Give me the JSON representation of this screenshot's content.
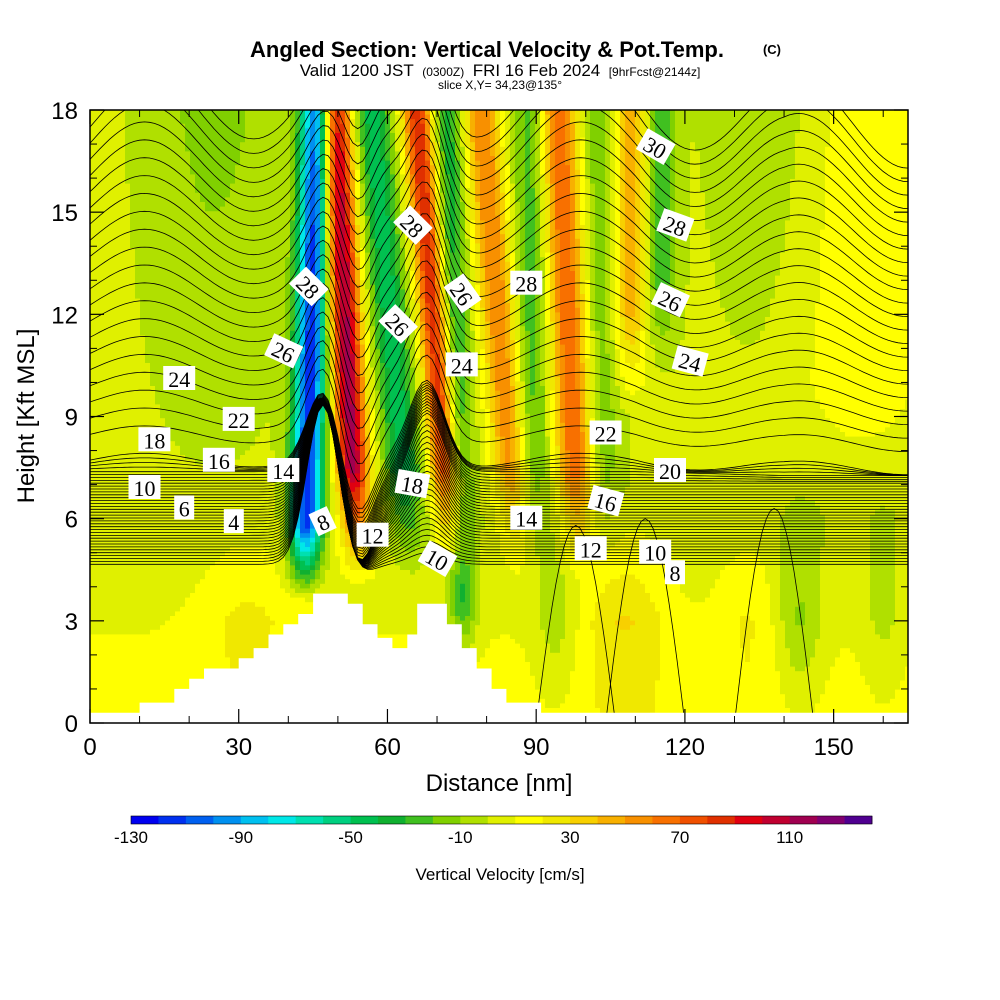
{
  "header": {
    "title": "Angled Section: Vertical Velocity & Pot.Temp.",
    "copyright": "(C)",
    "subtitle_main": "Valid 1200 JST",
    "subtitle_z": "(0300Z)",
    "subtitle_date": "FRI 16 Feb 2024",
    "subtitle_fcst": "[9hrFcst@2144z]",
    "slice": "slice X,Y= 34,23@135°"
  },
  "chart_data": {
    "type": "heatmap",
    "xlabel": "Distance [nm]",
    "ylabel": "Height [Kft MSL]",
    "xlim": [
      0,
      165
    ],
    "ylim": [
      0,
      18
    ],
    "x_ticks": [
      0,
      30,
      60,
      90,
      120,
      150
    ],
    "y_ticks": [
      0,
      3,
      6,
      9,
      12,
      15,
      18
    ],
    "colorbar": {
      "label": "Vertical Velocity [cm/s]",
      "tick_labels": [
        -130,
        -90,
        -50,
        -10,
        30,
        70,
        110
      ],
      "colors": [
        "#0000f0",
        "#0030f0",
        "#0060f0",
        "#0090f0",
        "#00c0f0",
        "#00e8e8",
        "#00e0b0",
        "#00d080",
        "#00c050",
        "#10b030",
        "#40c020",
        "#80d000",
        "#b0e000",
        "#e0f000",
        "#ffff00",
        "#f0e800",
        "#f8d000",
        "#f8b000",
        "#f89000",
        "#f87000",
        "#f05000",
        "#e03000",
        "#e00010",
        "#c00030",
        "#a00050",
        "#800070",
        "#500090"
      ]
    },
    "theta_contours": {
      "label_values": [
        4,
        6,
        8,
        8,
        10,
        10,
        10,
        12,
        12,
        14,
        14,
        16,
        16,
        18,
        18,
        20,
        22,
        22,
        24,
        24,
        24,
        26,
        26,
        26,
        26,
        28,
        28,
        28,
        28,
        30
      ]
    },
    "terrain": [
      [
        0,
        0.3
      ],
      [
        10,
        0.3
      ],
      [
        10,
        0.6
      ],
      [
        17,
        0.6
      ],
      [
        17,
        1.0
      ],
      [
        20,
        1.0
      ],
      [
        20,
        1.3
      ],
      [
        23,
        1.3
      ],
      [
        23,
        1.6
      ],
      [
        30,
        1.6
      ],
      [
        30,
        1.9
      ],
      [
        33,
        1.9
      ],
      [
        33,
        2.2
      ],
      [
        36,
        2.2
      ],
      [
        36,
        2.6
      ],
      [
        39,
        2.6
      ],
      [
        39,
        2.9
      ],
      [
        42,
        2.9
      ],
      [
        42,
        3.2
      ],
      [
        45,
        3.2
      ],
      [
        45,
        3.8
      ],
      [
        52,
        3.8
      ],
      [
        52,
        3.5
      ],
      [
        55,
        3.5
      ],
      [
        55,
        2.9
      ],
      [
        58,
        2.9
      ],
      [
        58,
        2.5
      ],
      [
        61,
        2.5
      ],
      [
        61,
        2.2
      ],
      [
        64,
        2.2
      ],
      [
        64,
        2.6
      ],
      [
        66,
        2.6
      ],
      [
        66,
        3.5
      ],
      [
        72,
        3.5
      ],
      [
        72,
        2.9
      ],
      [
        75,
        2.9
      ],
      [
        75,
        2.2
      ],
      [
        78,
        2.2
      ],
      [
        78,
        1.6
      ],
      [
        81,
        1.6
      ],
      [
        81,
        1.0
      ],
      [
        84,
        1.0
      ],
      [
        84,
        0.6
      ],
      [
        91,
        0.6
      ],
      [
        91,
        0.3
      ],
      [
        165,
        0.3
      ]
    ]
  }
}
